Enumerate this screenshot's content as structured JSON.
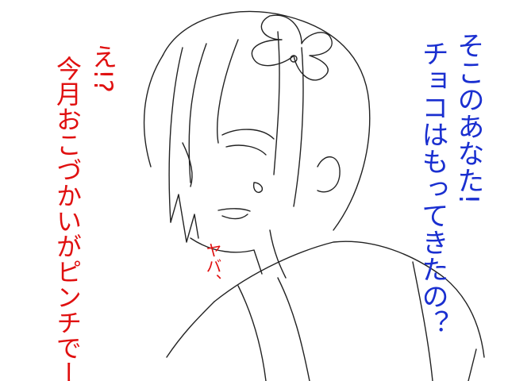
{
  "speech": {
    "blue": [
      "そこのあなた!",
      "チョコはもってきたの？"
    ],
    "red": [
      "え!?",
      "今月おこづかいがピンチでー"
    ],
    "aside": "ヤバ、"
  }
}
